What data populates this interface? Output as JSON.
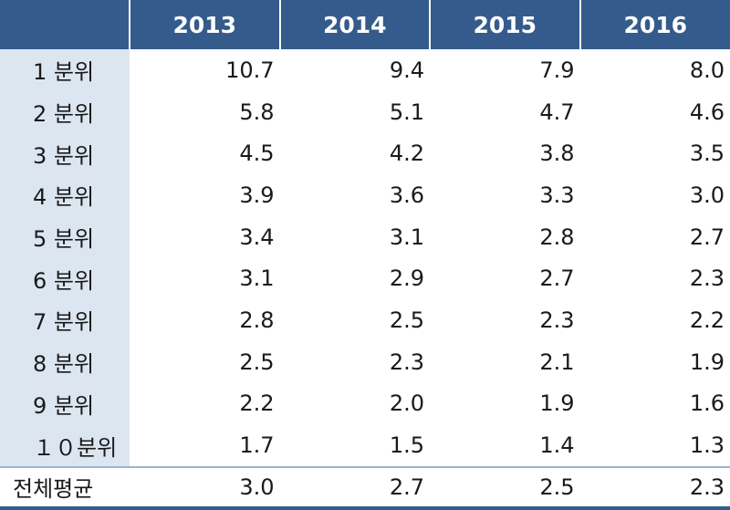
{
  "chart_data": {
    "type": "table",
    "columns": [
      "",
      "2013",
      "2014",
      "2015",
      "2016"
    ],
    "rows": [
      {
        "label": "1 분위",
        "values": [
          "10.7",
          "9.4",
          "7.9",
          "8.0"
        ]
      },
      {
        "label": "2 분위",
        "values": [
          "5.8",
          "5.1",
          "4.7",
          "4.6"
        ]
      },
      {
        "label": "3 분위",
        "values": [
          "4.5",
          "4.2",
          "3.8",
          "3.5"
        ]
      },
      {
        "label": "4 분위",
        "values": [
          "3.9",
          "3.6",
          "3.3",
          "3.0"
        ]
      },
      {
        "label": "5 분위",
        "values": [
          "3.4",
          "3.1",
          "2.8",
          "2.7"
        ]
      },
      {
        "label": "6 분위",
        "values": [
          "3.1",
          "2.9",
          "2.7",
          "2.3"
        ]
      },
      {
        "label": "7 분위",
        "values": [
          "2.8",
          "2.5",
          "2.3",
          "2.2"
        ]
      },
      {
        "label": "8 분위",
        "values": [
          "2.5",
          "2.3",
          "2.1",
          "1.9"
        ]
      },
      {
        "label": "9 분위",
        "values": [
          "2.2",
          "2.0",
          "1.9",
          "1.6"
        ]
      },
      {
        "label": "１０분위",
        "values": [
          "1.7",
          "1.5",
          "1.4",
          "1.3"
        ]
      }
    ],
    "summary_row": {
      "label": "전체평균",
      "values": [
        "3.0",
        "2.7",
        "2.5",
        "2.3"
      ]
    }
  },
  "colors": {
    "header_bg": "#345b8c",
    "label_bg": "#dce6f1",
    "header_text": "#ffffff"
  }
}
